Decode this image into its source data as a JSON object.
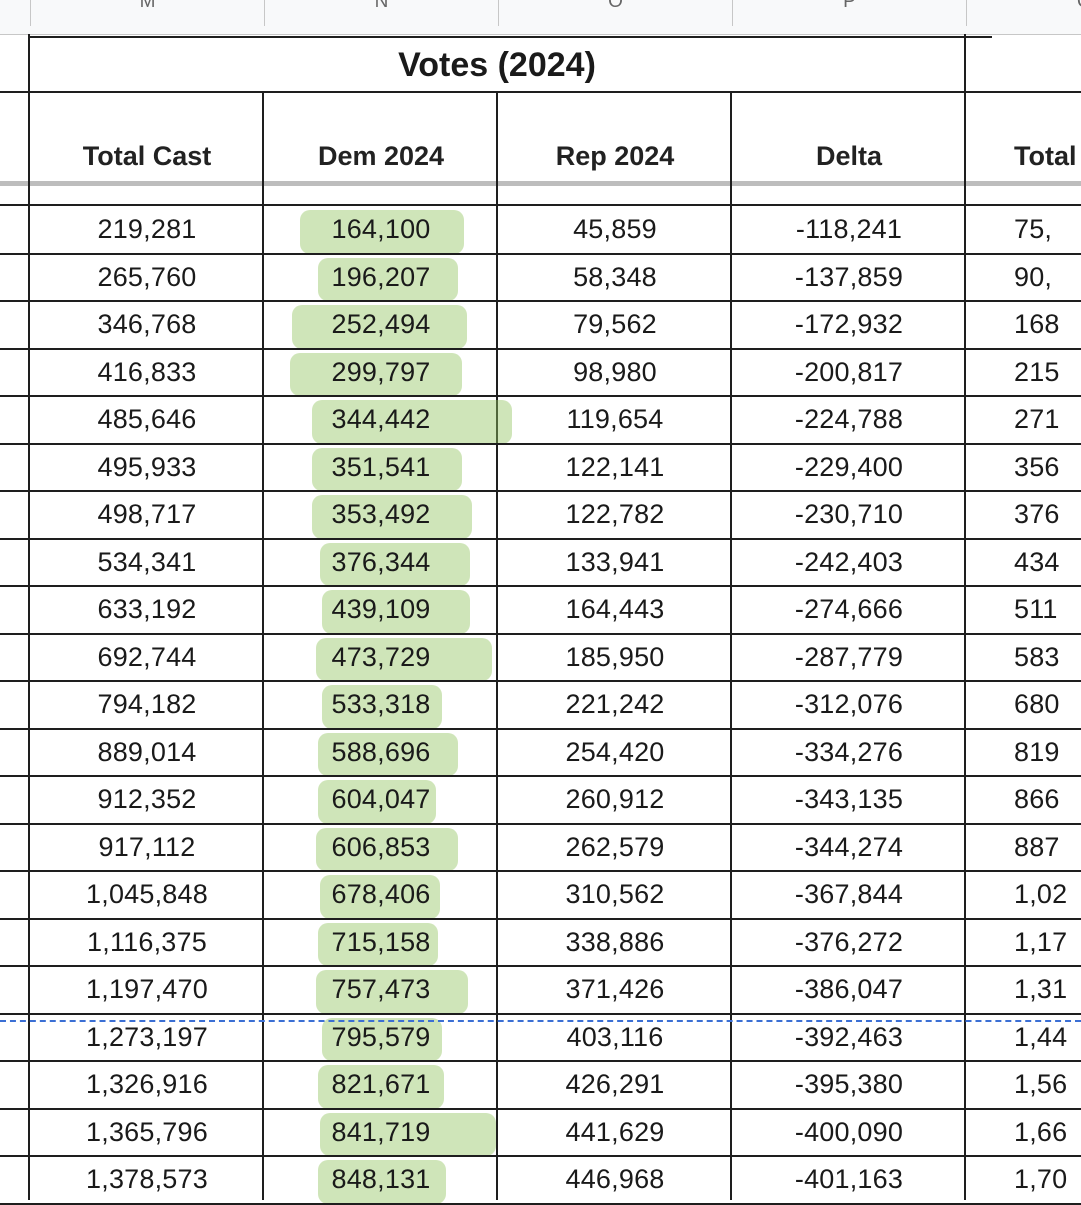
{
  "column_letters": [
    "M",
    "N",
    "O",
    "P",
    "Q"
  ],
  "group_title": "Votes (2024)",
  "headers": [
    "Total Cast",
    "Dem 2024",
    "Rep 2024",
    "Delta",
    "Total"
  ],
  "rows": [
    [
      "219,281",
      "164,100",
      "45,859",
      "-118,241",
      "75,"
    ],
    [
      "265,760",
      "196,207",
      "58,348",
      "-137,859",
      "90,"
    ],
    [
      "346,768",
      "252,494",
      "79,562",
      "-172,932",
      "168"
    ],
    [
      "416,833",
      "299,797",
      "98,980",
      "-200,817",
      "215"
    ],
    [
      "485,646",
      "344,442",
      "119,654",
      "-224,788",
      "271"
    ],
    [
      "495,933",
      "351,541",
      "122,141",
      "-229,400",
      "356"
    ],
    [
      "498,717",
      "353,492",
      "122,782",
      "-230,710",
      "376"
    ],
    [
      "534,341",
      "376,344",
      "133,941",
      "-242,403",
      "434"
    ],
    [
      "633,192",
      "439,109",
      "164,443",
      "-274,666",
      "511"
    ],
    [
      "692,744",
      "473,729",
      "185,950",
      "-287,779",
      "583"
    ],
    [
      "794,182",
      "533,318",
      "221,242",
      "-312,076",
      "680"
    ],
    [
      "889,014",
      "588,696",
      "254,420",
      "-334,276",
      "819"
    ],
    [
      "912,352",
      "604,047",
      "260,912",
      "-343,135",
      "866"
    ],
    [
      "917,112",
      "606,853",
      "262,579",
      "-344,274",
      "887"
    ],
    [
      "1,045,848",
      "678,406",
      "310,562",
      "-367,844",
      "1,02"
    ],
    [
      "1,116,375",
      "715,158",
      "338,886",
      "-376,272",
      "1,17"
    ],
    [
      "1,197,470",
      "757,473",
      "371,426",
      "-386,047",
      "1,31"
    ],
    [
      "1,273,197",
      "795,579",
      "403,116",
      "-392,463",
      "1,44"
    ],
    [
      "1,326,916",
      "821,671",
      "426,291",
      "-395,380",
      "1,56"
    ],
    [
      "1,365,796",
      "841,719",
      "441,629",
      "-400,090",
      "1,66"
    ],
    [
      "1,378,573",
      "848,131",
      "446,968",
      "-401,163",
      "1,70"
    ]
  ],
  "colors": {
    "highlight": "#92c45f",
    "grid": "#1e1e1e",
    "dashed_border": "#3b6fd4"
  }
}
